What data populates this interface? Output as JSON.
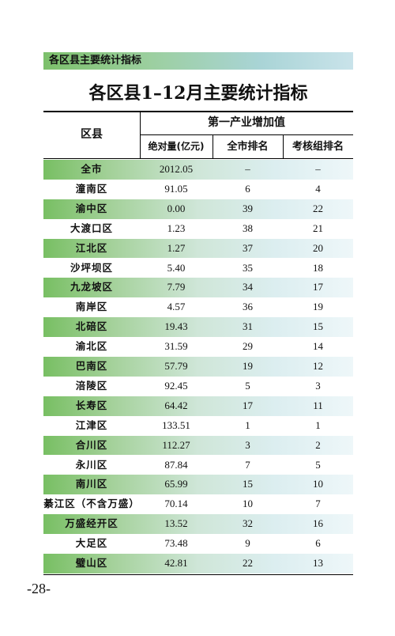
{
  "banner": "各区县主要统计指标",
  "title": "各区县1–12月主要统计指标",
  "header": {
    "district": "区县",
    "group": "第一产业增加值",
    "absolute": "绝对量(亿元)",
    "city_rank": "全市排名",
    "assess_rank": "考核组排名"
  },
  "rows": [
    {
      "name": "全市",
      "value": "2012.05",
      "city_rank": "–",
      "assess_rank": "–"
    },
    {
      "name": "潼南区",
      "value": "91.05",
      "city_rank": "6",
      "assess_rank": "4"
    },
    {
      "name": "渝中区",
      "value": "0.00",
      "city_rank": "39",
      "assess_rank": "22"
    },
    {
      "name": "大渡口区",
      "value": "1.23",
      "city_rank": "38",
      "assess_rank": "21"
    },
    {
      "name": "江北区",
      "value": "1.27",
      "city_rank": "37",
      "assess_rank": "20"
    },
    {
      "name": "沙坪坝区",
      "value": "5.40",
      "city_rank": "35",
      "assess_rank": "18"
    },
    {
      "name": "九龙坡区",
      "value": "7.79",
      "city_rank": "34",
      "assess_rank": "17"
    },
    {
      "name": "南岸区",
      "value": "4.57",
      "city_rank": "36",
      "assess_rank": "19"
    },
    {
      "name": "北碚区",
      "value": "19.43",
      "city_rank": "31",
      "assess_rank": "15"
    },
    {
      "name": "渝北区",
      "value": "31.59",
      "city_rank": "29",
      "assess_rank": "14"
    },
    {
      "name": "巴南区",
      "value": "57.79",
      "city_rank": "19",
      "assess_rank": "12"
    },
    {
      "name": "涪陵区",
      "value": "92.45",
      "city_rank": "5",
      "assess_rank": "3"
    },
    {
      "name": "长寿区",
      "value": "64.42",
      "city_rank": "17",
      "assess_rank": "11"
    },
    {
      "name": "江津区",
      "value": "133.51",
      "city_rank": "1",
      "assess_rank": "1"
    },
    {
      "name": "合川区",
      "value": "112.27",
      "city_rank": "3",
      "assess_rank": "2"
    },
    {
      "name": "永川区",
      "value": "87.84",
      "city_rank": "7",
      "assess_rank": "5"
    },
    {
      "name": "南川区",
      "value": "65.99",
      "city_rank": "15",
      "assess_rank": "10"
    },
    {
      "name": "綦江区（不含万盛）",
      "value": "70.14",
      "city_rank": "10",
      "assess_rank": "7"
    },
    {
      "name": "万盛经开区",
      "value": "13.52",
      "city_rank": "32",
      "assess_rank": "16"
    },
    {
      "name": "大足区",
      "value": "73.48",
      "city_rank": "9",
      "assess_rank": "6"
    },
    {
      "name": "璧山区",
      "value": "42.81",
      "city_rank": "22",
      "assess_rank": "13"
    }
  ],
  "page_number": "-28-"
}
